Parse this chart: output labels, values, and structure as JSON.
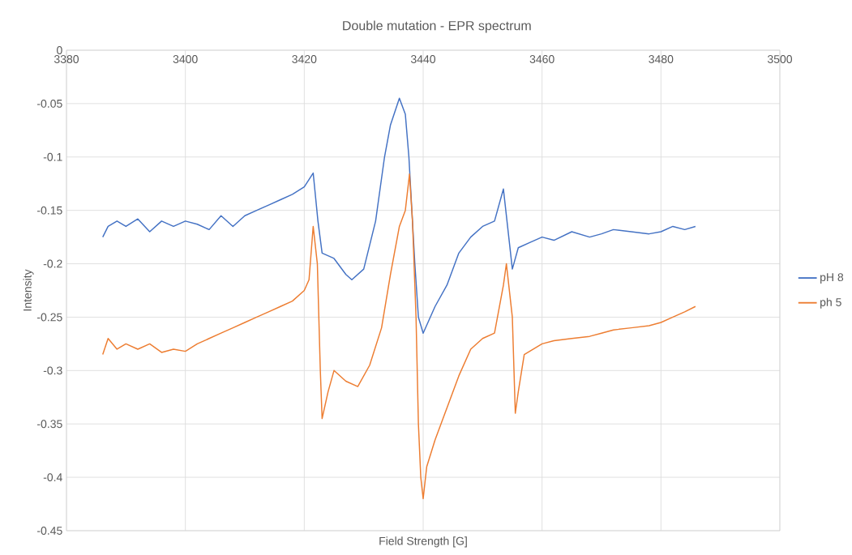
{
  "chart_data": {
    "type": "line",
    "title": "Double mutation - EPR spectrum",
    "xlabel": "Field Strength [G]",
    "ylabel": "Intensity",
    "xlim": [
      3380,
      3500
    ],
    "xticks": [
      3380,
      3400,
      3420,
      3440,
      3460,
      3480,
      3500
    ],
    "ylim": [
      -0.45,
      0
    ],
    "yticks": [
      0,
      -0.05,
      -0.1,
      -0.15,
      -0.2,
      -0.25,
      -0.3,
      -0.35,
      -0.4,
      -0.45
    ],
    "grid": true,
    "legend": "right",
    "line_style": "solid",
    "marker": "none",
    "series": [
      {
        "name": "pH 8",
        "color": "#4472c4",
        "x": [
          3386.1,
          3387,
          3388.5,
          3390,
          3392,
          3394,
          3396,
          3398,
          3400,
          3402,
          3404,
          3406,
          3408,
          3410,
          3412,
          3414,
          3416,
          3418,
          3420,
          3421.5,
          3422.3,
          3423,
          3425,
          3427,
          3428,
          3430,
          3432,
          3433.5,
          3434.5,
          3436,
          3437,
          3437.6,
          3438.6,
          3439.2,
          3440,
          3442,
          3444,
          3446,
          3448,
          3450,
          3452,
          3453.5,
          3454.5,
          3455,
          3456,
          3458,
          3460,
          3462,
          3465,
          3468,
          3470,
          3472,
          3475,
          3478,
          3480,
          3482,
          3484,
          3485.8
        ],
        "values": [
          -0.175,
          -0.165,
          -0.16,
          -0.165,
          -0.158,
          -0.17,
          -0.16,
          -0.165,
          -0.16,
          -0.163,
          -0.168,
          -0.155,
          -0.165,
          -0.155,
          -0.15,
          -0.145,
          -0.14,
          -0.135,
          -0.128,
          -0.115,
          -0.16,
          -0.19,
          -0.195,
          -0.21,
          -0.215,
          -0.205,
          -0.16,
          -0.1,
          -0.07,
          -0.045,
          -0.06,
          -0.1,
          -0.2,
          -0.25,
          -0.265,
          -0.24,
          -0.22,
          -0.19,
          -0.175,
          -0.165,
          -0.16,
          -0.13,
          -0.18,
          -0.205,
          -0.185,
          -0.18,
          -0.175,
          -0.178,
          -0.17,
          -0.175,
          -0.172,
          -0.168,
          -0.17,
          -0.172,
          -0.17,
          -0.165,
          -0.168,
          -0.165
        ]
      },
      {
        "name": "ph 5",
        "color": "#ed7d31",
        "x": [
          3386.1,
          3387,
          3388.5,
          3390,
          3392,
          3394,
          3396,
          3398,
          3400,
          3402,
          3404,
          3406,
          3408,
          3410,
          3412,
          3414,
          3416,
          3418,
          3420,
          3420.8,
          3421.5,
          3422.2,
          3422.7,
          3423,
          3424,
          3425,
          3427,
          3429,
          3431,
          3433,
          3434.5,
          3436,
          3437,
          3437.7,
          3438.2,
          3438.8,
          3439.2,
          3439.6,
          3440,
          3440.6,
          3442,
          3444,
          3446,
          3448,
          3450,
          3452,
          3453.5,
          3454,
          3455,
          3455.5,
          3456,
          3457,
          3460,
          3462,
          3465,
          3468,
          3470,
          3472,
          3475,
          3478,
          3480,
          3482,
          3484,
          3485.8
        ],
        "values": [
          -0.285,
          -0.27,
          -0.28,
          -0.275,
          -0.28,
          -0.275,
          -0.283,
          -0.28,
          -0.282,
          -0.275,
          -0.27,
          -0.265,
          -0.26,
          -0.255,
          -0.25,
          -0.245,
          -0.24,
          -0.235,
          -0.225,
          -0.215,
          -0.165,
          -0.2,
          -0.3,
          -0.345,
          -0.32,
          -0.3,
          -0.31,
          -0.315,
          -0.295,
          -0.26,
          -0.21,
          -0.165,
          -0.15,
          -0.116,
          -0.16,
          -0.25,
          -0.35,
          -0.4,
          -0.42,
          -0.39,
          -0.365,
          -0.335,
          -0.305,
          -0.28,
          -0.27,
          -0.265,
          -0.22,
          -0.2,
          -0.25,
          -0.34,
          -0.32,
          -0.285,
          -0.275,
          -0.272,
          -0.27,
          -0.268,
          -0.265,
          -0.262,
          -0.26,
          -0.258,
          -0.255,
          -0.25,
          -0.245,
          -0.24
        ]
      }
    ]
  }
}
